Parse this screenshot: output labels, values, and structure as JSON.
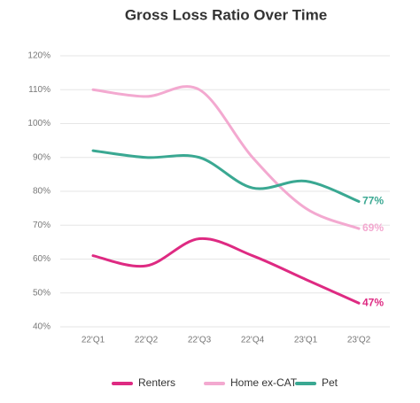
{
  "chart_data": {
    "type": "line",
    "title": "Gross Loss Ratio Over Time",
    "categories": [
      "22'Q1",
      "22'Q2",
      "22'Q3",
      "22'Q4",
      "23'Q1",
      "23'Q2"
    ],
    "series": [
      {
        "name": "Renters",
        "color": "#de2a82",
        "values": [
          61,
          58,
          66,
          61,
          54,
          47
        ],
        "value_labels": [
          null,
          null,
          null,
          null,
          null,
          "47%"
        ]
      },
      {
        "name": "Home ex-CAT",
        "color": "#f3a9d0",
        "values": [
          110,
          108,
          110,
          90,
          75,
          69
        ],
        "value_labels": [
          null,
          null,
          null,
          null,
          null,
          "69%"
        ]
      },
      {
        "name": "Pet",
        "color": "#3aa892",
        "values": [
          92,
          90,
          90,
          81,
          83,
          77
        ],
        "value_labels": [
          null,
          null,
          null,
          null,
          null,
          "77%"
        ]
      }
    ],
    "ylim": [
      40,
      120
    ],
    "yticks": [
      {
        "value": 40,
        "label": "40%"
      },
      {
        "value": 50,
        "label": "50%"
      },
      {
        "value": 60,
        "label": "60%"
      },
      {
        "value": 70,
        "label": "70%"
      },
      {
        "value": 80,
        "label": "80%"
      },
      {
        "value": 90,
        "label": "90%"
      },
      {
        "value": 100,
        "label": "100%"
      },
      {
        "value": 110,
        "label": "110%"
      },
      {
        "value": 120,
        "label": "120%"
      }
    ],
    "grid": true
  }
}
